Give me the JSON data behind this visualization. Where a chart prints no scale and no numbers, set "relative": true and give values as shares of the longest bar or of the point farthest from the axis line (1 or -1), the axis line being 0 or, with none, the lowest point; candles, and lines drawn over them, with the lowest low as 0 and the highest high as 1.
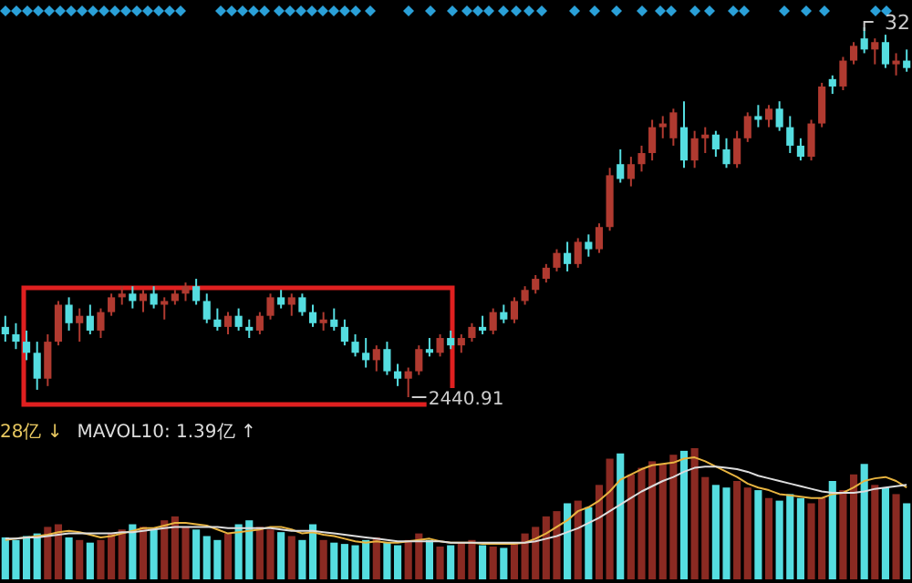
{
  "chart_data": [
    {
      "type": "candlestick",
      "relative": true,
      "categories": [
        null,
        null,
        null,
        null,
        null,
        null,
        null,
        null,
        null,
        null,
        null,
        null,
        null,
        null,
        null,
        null,
        null,
        null,
        null,
        null,
        null,
        null,
        null,
        null,
        null,
        null,
        null,
        null,
        null,
        null,
        null,
        null,
        null,
        null,
        null,
        null,
        null,
        null,
        null,
        null,
        null,
        null,
        null,
        null,
        null,
        null,
        null,
        null,
        null,
        null,
        null,
        null,
        null,
        null,
        null,
        null,
        null,
        null,
        null,
        null,
        null,
        null,
        null,
        null,
        null,
        null,
        null,
        null,
        null,
        null,
        null,
        null,
        null,
        null,
        null,
        null,
        null,
        null,
        null,
        null,
        null,
        null,
        null,
        null,
        null,
        null
      ],
      "ohlc": [
        [
          0.19,
          0.22,
          0.15,
          0.17
        ],
        [
          0.17,
          0.2,
          0.13,
          0.15
        ],
        [
          0.15,
          0.18,
          0.1,
          0.12
        ],
        [
          0.12,
          0.15,
          0.02,
          0.05
        ],
        [
          0.05,
          0.17,
          0.03,
          0.15
        ],
        [
          0.15,
          0.26,
          0.14,
          0.25
        ],
        [
          0.25,
          0.27,
          0.18,
          0.2
        ],
        [
          0.2,
          0.24,
          0.15,
          0.22
        ],
        [
          0.22,
          0.25,
          0.17,
          0.18
        ],
        [
          0.18,
          0.24,
          0.16,
          0.23
        ],
        [
          0.23,
          0.28,
          0.22,
          0.27
        ],
        [
          0.27,
          0.3,
          0.25,
          0.28
        ],
        [
          0.28,
          0.3,
          0.24,
          0.26
        ],
        [
          0.26,
          0.29,
          0.23,
          0.28
        ],
        [
          0.28,
          0.3,
          0.24,
          0.25
        ],
        [
          0.25,
          0.27,
          0.21,
          0.26
        ],
        [
          0.26,
          0.29,
          0.25,
          0.28
        ],
        [
          0.28,
          0.31,
          0.26,
          0.3
        ],
        [
          0.3,
          0.32,
          0.25,
          0.26
        ],
        [
          0.26,
          0.28,
          0.2,
          0.21
        ],
        [
          0.21,
          0.24,
          0.18,
          0.19
        ],
        [
          0.19,
          0.23,
          0.17,
          0.22
        ],
        [
          0.22,
          0.24,
          0.18,
          0.19
        ],
        [
          0.19,
          0.21,
          0.16,
          0.18
        ],
        [
          0.18,
          0.23,
          0.17,
          0.22
        ],
        [
          0.22,
          0.28,
          0.21,
          0.27
        ],
        [
          0.27,
          0.29,
          0.24,
          0.25
        ],
        [
          0.25,
          0.28,
          0.22,
          0.27
        ],
        [
          0.27,
          0.28,
          0.22,
          0.23
        ],
        [
          0.23,
          0.25,
          0.19,
          0.2
        ],
        [
          0.2,
          0.23,
          0.18,
          0.21
        ],
        [
          0.21,
          0.24,
          0.18,
          0.19
        ],
        [
          0.19,
          0.21,
          0.14,
          0.15
        ],
        [
          0.15,
          0.17,
          0.11,
          0.12
        ],
        [
          0.12,
          0.16,
          0.08,
          0.1
        ],
        [
          0.1,
          0.14,
          0.07,
          0.13
        ],
        [
          0.13,
          0.15,
          0.06,
          0.07
        ],
        [
          0.07,
          0.09,
          0.03,
          0.05
        ],
        [
          0.05,
          0.08,
          0.0,
          0.07
        ],
        [
          0.07,
          0.14,
          0.06,
          0.13
        ],
        [
          0.13,
          0.16,
          0.11,
          0.12
        ],
        [
          0.12,
          0.17,
          0.11,
          0.16
        ],
        [
          0.16,
          0.18,
          0.13,
          0.14
        ],
        [
          0.14,
          0.17,
          0.12,
          0.16
        ],
        [
          0.16,
          0.2,
          0.15,
          0.19
        ],
        [
          0.19,
          0.22,
          0.17,
          0.18
        ],
        [
          0.18,
          0.24,
          0.17,
          0.23
        ],
        [
          0.23,
          0.25,
          0.2,
          0.21
        ],
        [
          0.21,
          0.27,
          0.2,
          0.26
        ],
        [
          0.26,
          0.3,
          0.25,
          0.29
        ],
        [
          0.29,
          0.33,
          0.28,
          0.32
        ],
        [
          0.32,
          0.36,
          0.31,
          0.35
        ],
        [
          0.35,
          0.4,
          0.34,
          0.39
        ],
        [
          0.39,
          0.42,
          0.34,
          0.36
        ],
        [
          0.36,
          0.43,
          0.35,
          0.42
        ],
        [
          0.42,
          0.44,
          0.38,
          0.4
        ],
        [
          0.4,
          0.47,
          0.39,
          0.46
        ],
        [
          0.46,
          0.62,
          0.45,
          0.6
        ],
        [
          0.63,
          0.67,
          0.58,
          0.59
        ],
        [
          0.59,
          0.65,
          0.57,
          0.63
        ],
        [
          0.63,
          0.68,
          0.61,
          0.66
        ],
        [
          0.66,
          0.75,
          0.64,
          0.73
        ],
        [
          0.73,
          0.76,
          0.7,
          0.74
        ],
        [
          0.7,
          0.78,
          0.68,
          0.77
        ],
        [
          0.73,
          0.8,
          0.62,
          0.64
        ],
        [
          0.64,
          0.72,
          0.62,
          0.7
        ],
        [
          0.7,
          0.73,
          0.66,
          0.71
        ],
        [
          0.71,
          0.72,
          0.65,
          0.67
        ],
        [
          0.67,
          0.7,
          0.62,
          0.63
        ],
        [
          0.63,
          0.72,
          0.62,
          0.7
        ],
        [
          0.7,
          0.77,
          0.69,
          0.76
        ],
        [
          0.76,
          0.79,
          0.73,
          0.75
        ],
        [
          0.75,
          0.79,
          0.73,
          0.78
        ],
        [
          0.78,
          0.8,
          0.72,
          0.73
        ],
        [
          0.73,
          0.76,
          0.66,
          0.68
        ],
        [
          0.68,
          0.7,
          0.64,
          0.65
        ],
        [
          0.65,
          0.75,
          0.64,
          0.74
        ],
        [
          0.74,
          0.85,
          0.73,
          0.84
        ],
        [
          0.86,
          0.87,
          0.82,
          0.84
        ],
        [
          0.84,
          0.92,
          0.83,
          0.91
        ],
        [
          0.91,
          0.96,
          0.9,
          0.95
        ],
        [
          0.97,
          1.0,
          0.93,
          0.94
        ],
        [
          0.94,
          0.97,
          0.9,
          0.96
        ],
        [
          0.96,
          0.98,
          0.89,
          0.9
        ],
        [
          0.9,
          0.93,
          0.87,
          0.91
        ],
        [
          0.91,
          0.94,
          0.88,
          0.89
        ]
      ],
      "annotations": [
        "2440.91",
        "32"
      ]
    },
    {
      "type": "bar",
      "relative": true,
      "categories": [
        null,
        null,
        null,
        null,
        null,
        null,
        null,
        null,
        null,
        null,
        null,
        null,
        null,
        null,
        null,
        null,
        null,
        null,
        null,
        null,
        null,
        null,
        null,
        null,
        null,
        null,
        null,
        null,
        null,
        null,
        null,
        null,
        null,
        null,
        null,
        null,
        null,
        null,
        null,
        null,
        null,
        null,
        null,
        null,
        null,
        null,
        null,
        null,
        null,
        null,
        null,
        null,
        null,
        null,
        null,
        null,
        null,
        null,
        null,
        null,
        null,
        null,
        null,
        null,
        null,
        null,
        null,
        null,
        null,
        null,
        null,
        null,
        null,
        null,
        null,
        null,
        null,
        null,
        null,
        null,
        null,
        null,
        null,
        null,
        null,
        null
      ],
      "series": [
        {
          "type": "bar",
          "values": [
            0.32,
            0.3,
            0.33,
            0.35,
            0.4,
            0.42,
            0.32,
            0.3,
            0.28,
            0.3,
            0.35,
            0.38,
            0.42,
            0.4,
            0.38,
            0.45,
            0.48,
            0.4,
            0.38,
            0.33,
            0.3,
            0.35,
            0.42,
            0.45,
            0.4,
            0.38,
            0.36,
            0.33,
            0.3,
            0.42,
            0.3,
            0.28,
            0.27,
            0.26,
            0.3,
            0.32,
            0.28,
            0.26,
            0.3,
            0.35,
            0.3,
            0.25,
            0.26,
            0.28,
            0.3,
            0.26,
            0.25,
            0.24,
            0.28,
            0.35,
            0.4,
            0.48,
            0.52,
            0.58,
            0.6,
            0.55,
            0.72,
            0.92,
            0.96,
            0.8,
            0.85,
            0.9,
            0.88,
            0.95,
            0.98,
            1.0,
            0.78,
            0.72,
            0.7,
            0.75,
            0.7,
            0.68,
            0.62,
            0.6,
            0.65,
            0.62,
            0.58,
            0.62,
            0.75,
            0.68,
            0.8,
            0.88,
            0.72,
            0.7,
            0.65,
            0.58
          ],
          "colors": [
            "#55dde0",
            "#55dde0",
            "#55dde0",
            "#55dde0",
            "#8a2a22",
            "#8a2a22",
            "#55dde0",
            "#8a2a22",
            "#55dde0",
            "#8a2a22",
            "#8a2a22",
            "#8a2a22",
            "#55dde0",
            "#8a2a22",
            "#55dde0",
            "#8a2a22",
            "#8a2a22",
            "#8a2a22",
            "#55dde0",
            "#55dde0",
            "#55dde0",
            "#8a2a22",
            "#55dde0",
            "#55dde0",
            "#8a2a22",
            "#8a2a22",
            "#55dde0",
            "#8a2a22",
            "#55dde0",
            "#55dde0",
            "#8a2a22",
            "#55dde0",
            "#55dde0",
            "#55dde0",
            "#55dde0",
            "#8a2a22",
            "#55dde0",
            "#55dde0",
            "#8a2a22",
            "#8a2a22",
            "#55dde0",
            "#8a2a22",
            "#55dde0",
            "#8a2a22",
            "#8a2a22",
            "#55dde0",
            "#8a2a22",
            "#55dde0",
            "#8a2a22",
            "#8a2a22",
            "#8a2a22",
            "#8a2a22",
            "#8a2a22",
            "#55dde0",
            "#8a2a22",
            "#55dde0",
            "#8a2a22",
            "#8a2a22",
            "#55dde0",
            "#8a2a22",
            "#8a2a22",
            "#8a2a22",
            "#8a2a22",
            "#8a2a22",
            "#55dde0",
            "#8a2a22",
            "#8a2a22",
            "#55dde0",
            "#55dde0",
            "#8a2a22",
            "#8a2a22",
            "#55dde0",
            "#8a2a22",
            "#55dde0",
            "#55dde0",
            "#55dde0",
            "#8a2a22",
            "#8a2a22",
            "#55dde0",
            "#8a2a22",
            "#8a2a22",
            "#55dde0",
            "#8a2a22",
            "#55dde0",
            "#8a2a22",
            "#55dde0"
          ]
        },
        {
          "type": "line",
          "color": "#e8b440",
          "values": [
            0.3,
            0.31,
            0.32,
            0.33,
            0.34,
            0.36,
            0.37,
            0.36,
            0.34,
            0.32,
            0.33,
            0.35,
            0.37,
            0.39,
            0.39,
            0.41,
            0.43,
            0.43,
            0.42,
            0.41,
            0.38,
            0.35,
            0.36,
            0.37,
            0.38,
            0.4,
            0.4,
            0.38,
            0.35,
            0.36,
            0.34,
            0.33,
            0.31,
            0.29,
            0.28,
            0.29,
            0.28,
            0.28,
            0.29,
            0.3,
            0.31,
            0.29,
            0.28,
            0.28,
            0.28,
            0.27,
            0.27,
            0.27,
            0.27,
            0.28,
            0.31,
            0.35,
            0.4,
            0.45,
            0.52,
            0.55,
            0.6,
            0.67,
            0.76,
            0.8,
            0.84,
            0.87,
            0.88,
            0.89,
            0.92,
            0.93,
            0.9,
            0.86,
            0.82,
            0.78,
            0.73,
            0.7,
            0.68,
            0.65,
            0.64,
            0.63,
            0.62,
            0.62,
            0.65,
            0.66,
            0.7,
            0.75,
            0.77,
            0.78,
            0.75,
            0.7
          ]
        },
        {
          "type": "line",
          "color": "#dddddd",
          "values": [
            0.31,
            0.31,
            0.32,
            0.32,
            0.33,
            0.34,
            0.35,
            0.35,
            0.35,
            0.35,
            0.35,
            0.36,
            0.36,
            0.37,
            0.38,
            0.39,
            0.4,
            0.4,
            0.4,
            0.4,
            0.4,
            0.39,
            0.39,
            0.39,
            0.39,
            0.39,
            0.38,
            0.37,
            0.37,
            0.37,
            0.36,
            0.35,
            0.34,
            0.33,
            0.32,
            0.31,
            0.3,
            0.29,
            0.29,
            0.29,
            0.29,
            0.29,
            0.28,
            0.28,
            0.28,
            0.28,
            0.28,
            0.28,
            0.28,
            0.28,
            0.29,
            0.31,
            0.33,
            0.36,
            0.39,
            0.43,
            0.47,
            0.52,
            0.57,
            0.62,
            0.67,
            0.71,
            0.75,
            0.78,
            0.82,
            0.85,
            0.86,
            0.86,
            0.85,
            0.84,
            0.82,
            0.79,
            0.77,
            0.75,
            0.73,
            0.71,
            0.69,
            0.67,
            0.66,
            0.66,
            0.66,
            0.67,
            0.69,
            0.7,
            0.71,
            0.72
          ]
        }
      ],
      "annotations": [
        "28亿 ↓",
        "MAVOL10: 1.39亿 ↑"
      ]
    }
  ]
}
